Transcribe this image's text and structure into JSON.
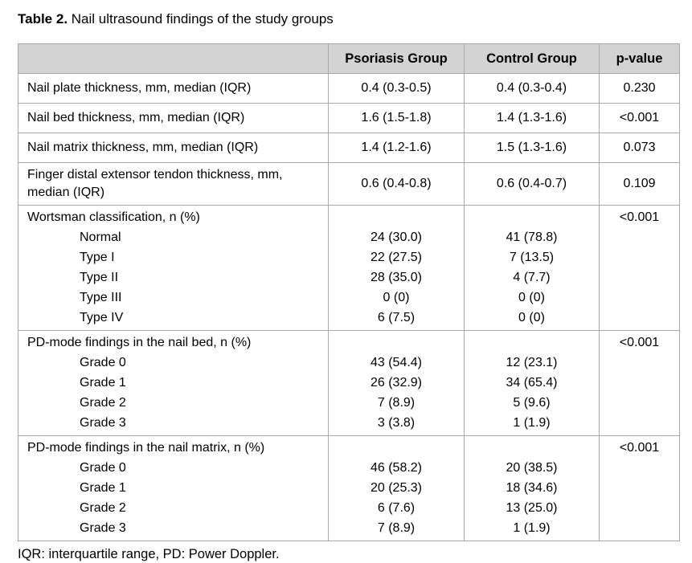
{
  "title": {
    "bold": "Table 2.",
    "rest": " Nail ultrasound findings of the study groups"
  },
  "table": {
    "headers": [
      "",
      "Psoriasis Group",
      "Control Group",
      "p-value"
    ],
    "rows": [
      {
        "label": "Nail plate thickness, mm, median (IQR)",
        "psoriasis": "0.4 (0.3-0.5)",
        "control": "0.4 (0.3-0.4)",
        "p": "0.230"
      },
      {
        "label": "Nail bed thickness, mm, median (IQR)",
        "psoriasis": "1.6 (1.5-1.8)",
        "control": "1.4 (1.3-1.6)",
        "p": "<0.001"
      },
      {
        "label": "Nail matrix thickness, mm, median (IQR)",
        "psoriasis": "1.4 (1.2-1.6)",
        "control": "1.5 (1.3-1.6)",
        "p": "0.073"
      },
      {
        "label": "Finger distal extensor tendon thickness, mm, median (IQR)",
        "psoriasis": "0.6 (0.4-0.8)",
        "control": "0.6 (0.4-0.7)",
        "p": "0.109"
      },
      {
        "label": "Wortsman classification, n (%)",
        "p": "<0.001",
        "sub": [
          {
            "label": "Normal",
            "psoriasis": "24 (30.0)",
            "control": "41 (78.8)"
          },
          {
            "label": "Type I",
            "psoriasis": "22 (27.5)",
            "control": "7 (13.5)"
          },
          {
            "label": "Type II",
            "psoriasis": "28 (35.0)",
            "control": "4 (7.7)"
          },
          {
            "label": "Type III",
            "psoriasis": "0 (0)",
            "control": "0 (0)"
          },
          {
            "label": "Type IV",
            "psoriasis": "6 (7.5)",
            "control": "0 (0)"
          }
        ]
      },
      {
        "label": "PD-mode findings in the nail bed, n (%)",
        "p": "<0.001",
        "sub": [
          {
            "label": "Grade 0",
            "psoriasis": "43 (54.4)",
            "control": "12 (23.1)"
          },
          {
            "label": "Grade 1",
            "psoriasis": "26 (32.9)",
            "control": "34 (65.4)"
          },
          {
            "label": "Grade 2",
            "psoriasis": "7 (8.9)",
            "control": "5 (9.6)"
          },
          {
            "label": "Grade 3",
            "psoriasis": "3 (3.8)",
            "control": "1 (1.9)"
          }
        ]
      },
      {
        "label": "PD-mode findings in the nail matrix, n (%)",
        "p": "<0.001",
        "sub": [
          {
            "label": "Grade 0",
            "psoriasis": "46 (58.2)",
            "control": "20 (38.5)"
          },
          {
            "label": "Grade 1",
            "psoriasis": "20 (25.3)",
            "control": "18 (34.6)"
          },
          {
            "label": "Grade 2",
            "psoriasis": "6 (7.6)",
            "control": "13 (25.0)"
          },
          {
            "label": "Grade 3",
            "psoriasis": "7 (8.9)",
            "control": "1 (1.9)"
          }
        ]
      }
    ]
  },
  "footnote": "IQR: interquartile range, PD: Power Doppler.",
  "colors": {
    "header_bg": "#d3d3d3",
    "border": "#a9a9a9",
    "text": "#000000",
    "background": "#ffffff"
  }
}
